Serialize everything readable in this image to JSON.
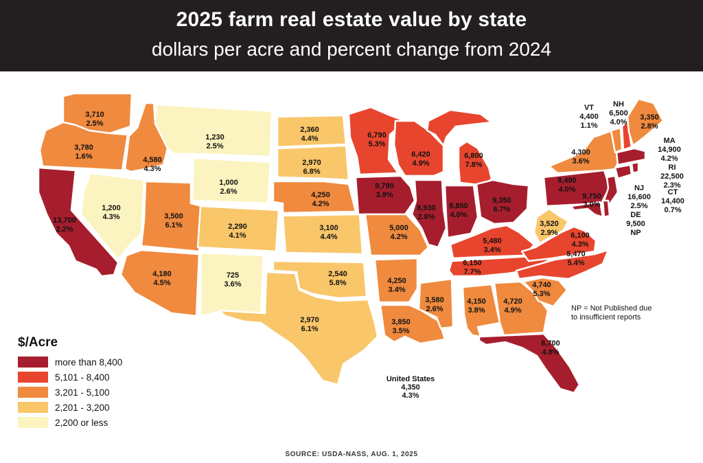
{
  "header": {
    "title": "2025 farm real estate value by state",
    "subtitle": "dollars per acre and percent change from 2024"
  },
  "colors": {
    "header_bg": "#231f20",
    "more_than_8400": "#a61e2d",
    "r5101_8400": "#e8452e",
    "r3201_5100": "#f08a3e",
    "r2201_3200": "#f9c66a",
    "r2200_or_less": "#fbf4c0"
  },
  "legend": {
    "title": "$/Acre",
    "items": [
      {
        "label": "more than 8,400",
        "color": "#a61e2d"
      },
      {
        "label": "5,101 - 8,400",
        "color": "#e8452e"
      },
      {
        "label": "3,201 - 5,100",
        "color": "#f08a3e"
      },
      {
        "label": "2,201 - 3,200",
        "color": "#f9c66a"
      },
      {
        "label": "2,200 or less",
        "color": "#fbf4c0"
      }
    ]
  },
  "states": {
    "WA": {
      "value": "3,710",
      "change": "2.5%"
    },
    "OR": {
      "value": "3,780",
      "change": "1.6%"
    },
    "CA": {
      "value": "13,700",
      "change": "2.2%"
    },
    "ID": {
      "value": "4,580",
      "change": "4.3%"
    },
    "NV": {
      "value": "1,200",
      "change": "4.3%"
    },
    "MT": {
      "value": "1,230",
      "change": "2.5%"
    },
    "WY": {
      "value": "1,000",
      "change": "2.6%"
    },
    "UT": {
      "value": "3,500",
      "change": "6.1%"
    },
    "AZ": {
      "value": "4,180",
      "change": "4.5%"
    },
    "CO": {
      "value": "2,290",
      "change": "4.1%"
    },
    "NM": {
      "value": "725",
      "change": "3.6%"
    },
    "ND": {
      "value": "2,360",
      "change": "4.4%"
    },
    "SD": {
      "value": "2,970",
      "change": "6.8%"
    },
    "NE": {
      "value": "4,250",
      "change": "4.2%"
    },
    "KS": {
      "value": "3,100",
      "change": "4.4%"
    },
    "OK": {
      "value": "2,540",
      "change": "5.8%"
    },
    "TX": {
      "value": "2,970",
      "change": "6.1%"
    },
    "MN": {
      "value": "6,790",
      "change": "5.3%"
    },
    "IA": {
      "value": "9,790",
      "change": "3.9%"
    },
    "MO": {
      "value": "5,000",
      "change": "4.2%"
    },
    "AR": {
      "value": "4,250",
      "change": "3.4%"
    },
    "LA": {
      "value": "3,850",
      "change": "3.5%"
    },
    "WI": {
      "value": "6,420",
      "change": "4.9%"
    },
    "IL": {
      "value": "8,930",
      "change": "2.8%"
    },
    "MI": {
      "value": "6,800",
      "change": "7.8%"
    },
    "IN": {
      "value": "8,850",
      "change": "4.0%"
    },
    "OH": {
      "value": "9,350",
      "change": "6.7%"
    },
    "KY": {
      "value": "5,480",
      "change": "3.4%"
    },
    "TN": {
      "value": "6,150",
      "change": "7.7%"
    },
    "MS": {
      "value": "3,580",
      "change": "2.6%"
    },
    "AL": {
      "value": "4,150",
      "change": "3.8%"
    },
    "GA": {
      "value": "4,720",
      "change": "4.9%"
    },
    "FL": {
      "value": "8,700",
      "change": "4.8%"
    },
    "SC": {
      "value": "4,740",
      "change": "5.3%"
    },
    "NC": {
      "value": "5,470",
      "change": "5.4%"
    },
    "VA": {
      "value": "6,100",
      "change": "4.3%"
    },
    "WV": {
      "value": "3,520",
      "change": "2.9%"
    },
    "PA": {
      "value": "8,490",
      "change": "4.0%"
    },
    "NY": {
      "value": "4,300",
      "change": "3.6%"
    },
    "MD": {
      "value": "9,750",
      "change": "3.0%"
    },
    "ME": {
      "value": "3,350",
      "change": "2.8%"
    },
    "VT": {
      "name": "VT",
      "value": "4,400",
      "change": "1.1%"
    },
    "NH": {
      "name": "NH",
      "value": "6,500",
      "change": "4.0%"
    },
    "MA": {
      "name": "MA",
      "value": "14,900",
      "change": "4.2%"
    },
    "RI": {
      "name": "RI",
      "value": "22,500",
      "change": "2.3%"
    },
    "CT": {
      "name": "CT",
      "value": "14,400",
      "change": "0.7%"
    },
    "NJ": {
      "name": "NJ",
      "value": "16,600",
      "change": "2.5%"
    },
    "DE": {
      "name": "DE",
      "value": "9,500",
      "change": "NP"
    }
  },
  "np_note": {
    "line1": "NP = Not Published due",
    "line2": "to insufficient reports"
  },
  "us_total": {
    "label": "United States",
    "value": "4,350",
    "change": "4.3%"
  },
  "source": "SOURCE: USDA-NASS, AUG. 1, 2025"
}
